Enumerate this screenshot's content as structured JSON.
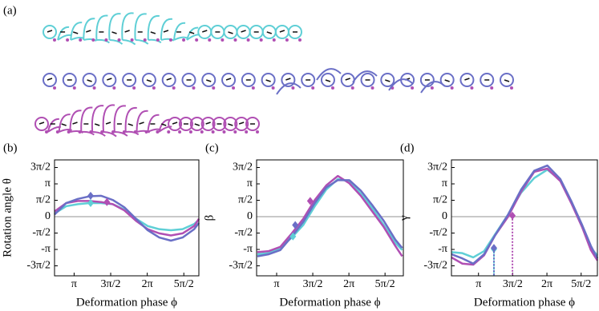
{
  "figure_label": "(a)",
  "chart_data": [
    {
      "type": "line",
      "label": "(b)",
      "y_label": "Rotation angle θ",
      "x_label": "Deformation phase ϕ",
      "x": [
        2.3,
        2.8,
        3.3,
        3.8,
        4.3,
        4.8,
        5.3,
        5.8,
        6.3,
        6.8,
        7.3,
        7.8,
        8.3,
        8.5
      ],
      "xlim": [
        2.3,
        8.5
      ],
      "ylim": [
        -5.67,
        5.44
      ],
      "xticks": [
        {
          "value": 3.1416,
          "label": "π"
        },
        {
          "value": 4.7124,
          "label": "3π/2"
        },
        {
          "value": 6.2832,
          "label": "2π"
        },
        {
          "value": 7.854,
          "label": "5π/2"
        }
      ],
      "yticks": [
        {
          "value": -4.7124,
          "label": "-3π/2"
        },
        {
          "value": -3.1416,
          "label": "-π"
        },
        {
          "value": -1.5708,
          "label": "-π/2"
        },
        0,
        {
          "value": 1.5708,
          "label": "π/2"
        },
        {
          "value": 3.1416,
          "label": "π"
        },
        {
          "value": 4.7124,
          "label": "3π/2"
        }
      ],
      "series": [
        {
          "color": "#5fcfd6",
          "values": [
            0.3,
            1.0,
            1.2,
            1.3,
            1.3,
            1.2,
            0.7,
            -0.2,
            -0.9,
            -1.2,
            -1.3,
            -1.2,
            -0.7,
            -0.3
          ],
          "marker_x": 3.85,
          "marker_y": 1.3
        },
        {
          "color": "#b04fb3",
          "values": [
            0.5,
            1.3,
            1.5,
            1.5,
            1.4,
            1.2,
            0.6,
            -0.4,
            -1.2,
            -1.6,
            -1.8,
            -1.6,
            -0.9,
            -0.2
          ],
          "marker_x": 4.55,
          "marker_y": 1.4
        },
        {
          "color": "#6a6fc6",
          "values": [
            0.2,
            1.3,
            1.7,
            1.95,
            2.0,
            1.6,
            0.9,
            -0.2,
            -1.3,
            -2.0,
            -2.3,
            -2.0,
            -1.2,
            -0.6
          ],
          "marker_x": 3.85,
          "marker_y": 2.0
        }
      ]
    },
    {
      "type": "line",
      "label": "(c)",
      "y_label": "β",
      "x_label": "Deformation phase ϕ",
      "x": [
        2.3,
        2.8,
        3.3,
        3.8,
        4.3,
        4.8,
        5.3,
        5.8,
        6.3,
        6.8,
        7.3,
        7.8,
        8.3,
        8.6
      ],
      "xlim": [
        2.27,
        8.65
      ],
      "ylim": [
        -5.67,
        5.44
      ],
      "xticks": [
        {
          "value": 3.1416,
          "label": "π"
        },
        {
          "value": 4.7124,
          "label": "3π/2"
        },
        {
          "value": 6.2832,
          "label": "2π"
        },
        {
          "value": 7.854,
          "label": "5π/2"
        }
      ],
      "yticks": [
        {
          "value": -4.7124,
          "label": "-3π/2"
        },
        {
          "value": -3.1416,
          "label": "-π"
        },
        {
          "value": -1.5708,
          "label": "-π/2"
        },
        0,
        {
          "value": 1.5708,
          "label": "π/2"
        },
        {
          "value": 3.1416,
          "label": "π"
        },
        {
          "value": 4.7124,
          "label": "3π/2"
        }
      ],
      "series": [
        {
          "color": "#5fcfd6",
          "values": [
            -3.6,
            -3.5,
            -3.0,
            -2.0,
            -0.8,
            1.0,
            2.6,
            3.6,
            3.4,
            2.2,
            0.8,
            -0.8,
            -2.5,
            -3.2
          ],
          "marker_x": 3.85,
          "marker_y": -1.9
        },
        {
          "color": "#b04fb3",
          "values": [
            -3.4,
            -3.3,
            -2.9,
            -1.6,
            -0.2,
            1.6,
            3.0,
            3.9,
            3.2,
            2.0,
            0.5,
            -1.0,
            -2.8,
            -3.8
          ],
          "marker_x": 4.6,
          "marker_y": 1.5
        },
        {
          "color": "#6a6fc6",
          "values": [
            -3.8,
            -3.6,
            -3.2,
            -1.9,
            -0.5,
            1.3,
            2.8,
            3.5,
            3.5,
            2.5,
            1.1,
            -0.4,
            -2.2,
            -3.0
          ],
          "marker_x": 3.95,
          "marker_y": -0.8
        }
      ]
    },
    {
      "type": "line",
      "label": "(d)",
      "y_label": "γ",
      "x_label": "Deformation phase ϕ",
      "x": [
        1.9,
        2.4,
        2.9,
        3.4,
        3.9,
        4.5,
        5.1,
        5.7,
        6.3,
        6.9,
        7.4,
        7.9,
        8.3,
        8.6
      ],
      "xlim": [
        1.9,
        8.6
      ],
      "ylim": [
        -5.67,
        5.44
      ],
      "xticks": [
        {
          "value": 3.1416,
          "label": "π"
        },
        {
          "value": 4.7124,
          "label": "3π/2"
        },
        {
          "value": 6.2832,
          "label": "2π"
        },
        {
          "value": 7.854,
          "label": "5π/2"
        }
      ],
      "yticks": [
        {
          "value": -4.7124,
          "label": "-3π/2"
        },
        {
          "value": -3.1416,
          "label": "-π"
        },
        {
          "value": -1.5708,
          "label": "-π/2"
        },
        0,
        {
          "value": 1.5708,
          "label": "π/2"
        },
        {
          "value": 3.1416,
          "label": "π"
        },
        {
          "value": 4.7124,
          "label": "3π/2"
        }
      ],
      "series": [
        {
          "color": "#5fcfd6",
          "values": [
            -3.4,
            -3.5,
            -3.9,
            -3.3,
            -1.7,
            0.2,
            2.3,
            3.7,
            4.5,
            3.5,
            1.4,
            -1.0,
            -3.0,
            -3.7
          ],
          "marker_x": 3.85,
          "marker_y": -3.1
        },
        {
          "color": "#b04fb3",
          "values": [
            -3.9,
            -4.5,
            -4.6,
            -3.7,
            -1.8,
            0.0,
            2.4,
            4.3,
            4.6,
            3.4,
            1.3,
            -1.0,
            -3.2,
            -4.2
          ],
          "marker_x": 4.7,
          "marker_y": 0.1
        },
        {
          "color": "#6a6fc6",
          "values": [
            -3.6,
            -4.0,
            -4.5,
            -3.6,
            -1.8,
            0.2,
            2.6,
            4.4,
            4.9,
            3.6,
            1.5,
            -0.8,
            -2.8,
            -4.0
          ],
          "marker_x": 3.85,
          "marker_y": -3.0
        }
      ]
    }
  ]
}
